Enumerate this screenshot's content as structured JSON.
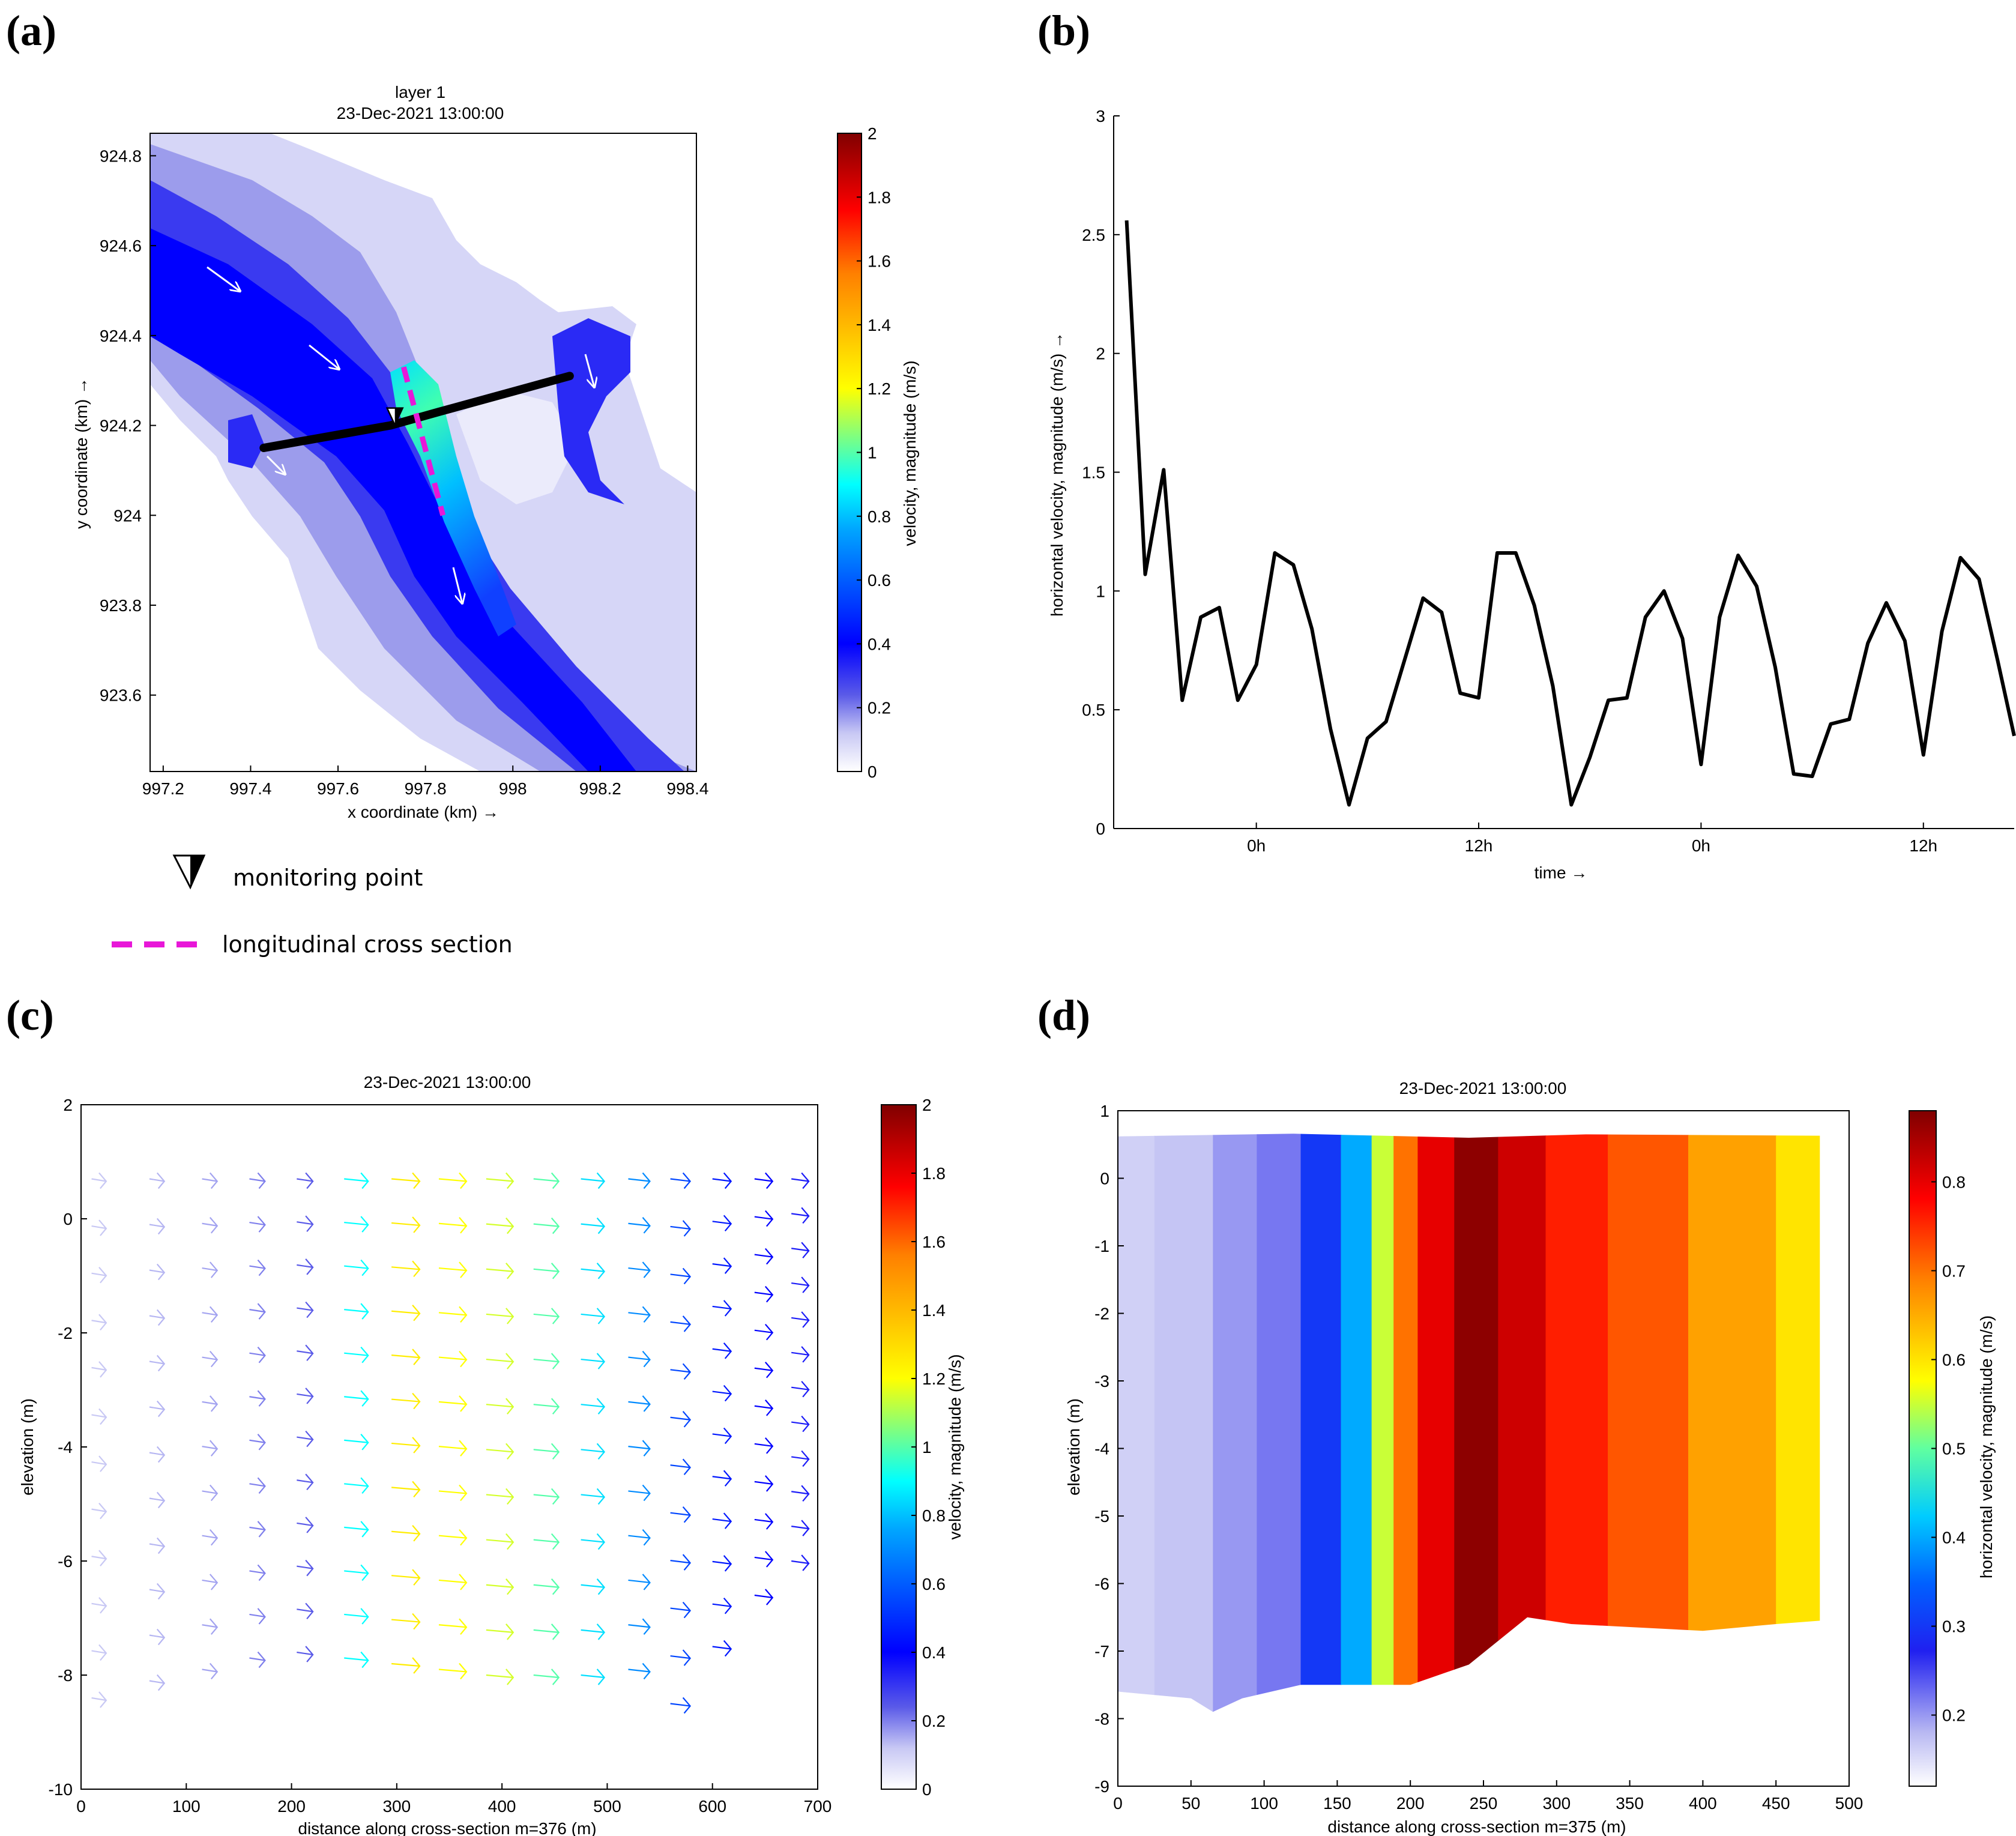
{
  "panels": [
    {
      "id": "a",
      "label": "(a)"
    },
    {
      "id": "b",
      "label": "(b)"
    },
    {
      "id": "c",
      "label": "(c)"
    },
    {
      "id": "d",
      "label": "(d)"
    }
  ],
  "legend": {
    "monitoring_point": "monitoring point",
    "longitudinal_cross_section": "longitudinal cross section",
    "monitoring_color": "#000000",
    "section_color": "#e817d8"
  },
  "chart_data": [
    {
      "panel": "a",
      "type": "heatmap",
      "title": "layer 1",
      "subtitle": "23-Dec-2021 13:00:00",
      "xlabel": "x coordinate (km) →",
      "ylabel": "y coordinate (km) →",
      "xlim": [
        997.17,
        998.42
      ],
      "ylim": [
        923.43,
        924.85
      ],
      "xticks": [
        997.2,
        997.4,
        997.6,
        997.8,
        998,
        998.2,
        998.4
      ],
      "xticklabels": [
        "997.2",
        "997.4",
        "997.6",
        "997.8",
        "998",
        "998.2",
        "998.4"
      ],
      "yticks": [
        923.6,
        923.8,
        924,
        924.2,
        924.4,
        924.6,
        924.8
      ],
      "yticklabels": [
        "923.6",
        "923.8",
        "924",
        "924.2",
        "924.4",
        "924.6",
        "924.8"
      ],
      "colorbar": {
        "label": "velocity, magnitude (m/s)",
        "range": [
          0,
          2
        ],
        "ticks": [
          0,
          0.2,
          0.4,
          0.6,
          0.8,
          1,
          1.2,
          1.4,
          1.6,
          1.8,
          2
        ],
        "ticklabels": [
          "0",
          "0.2",
          "0.4",
          "0.6",
          "0.8",
          "1",
          "1.2",
          "1.4",
          "1.6",
          "1.8",
          "2"
        ]
      },
      "weir_line": [
        [
          997.43,
          924.15
        ],
        [
          997.72,
          924.2
        ],
        [
          997.83,
          924.23
        ],
        [
          998.13,
          924.31
        ]
      ],
      "section_line": [
        [
          997.75,
          924.33
        ],
        [
          997.84,
          924.0
        ]
      ],
      "monitoring_point": [
        997.73,
        924.22
      ]
    },
    {
      "panel": "b",
      "type": "line",
      "xlabel": "time →",
      "ylabel": "horizontal velocity, magnitude (m/s) →",
      "ylim": [
        0,
        3
      ],
      "yticks": [
        0,
        0.5,
        1,
        1.5,
        2,
        2.5,
        3
      ],
      "yticklabels": [
        "0",
        "0.5",
        "1",
        "1.5",
        "2",
        "2.5",
        "3"
      ],
      "xlim": [
        -7.7,
        40.9
      ],
      "xticks": [
        0,
        12,
        24,
        36
      ],
      "xticklabels": [
        "0h",
        "12h",
        "0h",
        "12h"
      ],
      "series": [
        {
          "name": "horizontal velocity",
          "x": [
            -7,
            -6,
            -5,
            -4,
            -3,
            -2,
            -1,
            0,
            1,
            2,
            3,
            4,
            5,
            6,
            7,
            8,
            9,
            10,
            11,
            12,
            13,
            14,
            15,
            16,
            17,
            18,
            19,
            20,
            21,
            22,
            23,
            24,
            25,
            26,
            27,
            28,
            29,
            30,
            31,
            32,
            33,
            34,
            35,
            36,
            37,
            38,
            39,
            40,
            40.9
          ],
          "values": [
            2.56,
            1.07,
            1.51,
            0.54,
            0.89,
            0.93,
            0.54,
            0.69,
            1.16,
            1.11,
            0.84,
            0.42,
            0.1,
            0.38,
            0.45,
            0.71,
            0.97,
            0.91,
            0.57,
            0.55,
            1.16,
            1.16,
            0.94,
            0.6,
            0.1,
            0.3,
            0.54,
            0.55,
            0.89,
            1.0,
            0.8,
            0.27,
            0.89,
            1.15,
            1.02,
            0.68,
            0.23,
            0.22,
            0.44,
            0.46,
            0.78,
            0.95,
            0.79,
            0.31,
            0.83,
            1.14,
            1.05,
            0.71,
            0.39
          ]
        }
      ]
    },
    {
      "panel": "c",
      "type": "scatter",
      "title": "23-Dec-2021 13:00:00",
      "xlabel": "distance along cross-section m=376 (m)",
      "ylabel": "elevation (m)",
      "xlim": [
        0,
        700
      ],
      "ylim": [
        -10,
        2
      ],
      "xticks": [
        0,
        100,
        200,
        300,
        400,
        500,
        600,
        700
      ],
      "xticklabels": [
        "0",
        "100",
        "200",
        "300",
        "400",
        "500",
        "600",
        "700"
      ],
      "yticks": [
        -10,
        -8,
        -6,
        -4,
        -2,
        0,
        2
      ],
      "yticklabels": [
        "-10",
        "-8",
        "-6",
        "-4",
        "-2",
        "0",
        "2"
      ],
      "colorbar": {
        "label": "velocity, magnitude (m/s)",
        "range": [
          0,
          2
        ],
        "ticks": [
          0,
          0.2,
          0.4,
          0.6,
          0.8,
          1,
          1.2,
          1.4,
          1.6,
          1.8,
          2
        ],
        "ticklabels": [
          "0",
          "0.2",
          "0.4",
          "0.6",
          "0.8",
          "1",
          "1.2",
          "1.4",
          "1.6",
          "1.8",
          "2"
        ]
      },
      "columns": [
        {
          "x": 10,
          "bottom": -8.4,
          "speed": 0.12
        },
        {
          "x": 65,
          "bottom": -8.1,
          "speed": 0.14
        },
        {
          "x": 115,
          "bottom": -7.9,
          "speed": 0.16
        },
        {
          "x": 160,
          "bottom": -7.7,
          "speed": 0.2
        },
        {
          "x": 205,
          "bottom": -7.6,
          "speed": 0.24
        },
        {
          "x": 250,
          "bottom": -7.7,
          "speed": 0.9
        },
        {
          "x": 295,
          "bottom": -7.8,
          "speed": 1.25
        },
        {
          "x": 340,
          "bottom": -7.9,
          "speed": 1.2
        },
        {
          "x": 385,
          "bottom": -8.0,
          "speed": 1.15
        },
        {
          "x": 430,
          "bottom": -8.0,
          "speed": 1.0
        },
        {
          "x": 475,
          "bottom": -8.0,
          "speed": 0.85
        },
        {
          "x": 520,
          "bottom": -7.9,
          "speed": 0.7
        },
        {
          "x": 560,
          "bottom": -8.5,
          "speed": 0.55
        },
        {
          "x": 600,
          "bottom": -7.5,
          "speed": 0.45
        },
        {
          "x": 640,
          "bottom": -6.6,
          "speed": 0.4
        },
        {
          "x": 675,
          "bottom": -6.0,
          "speed": 0.35
        }
      ]
    },
    {
      "panel": "d",
      "type": "heatmap",
      "title": "23-Dec-2021 13:00:00",
      "xlabel": "distance along cross-section m=375 (m)",
      "ylabel": "elevation (m)",
      "xlim": [
        0,
        500
      ],
      "ylim": [
        -9,
        1
      ],
      "xticks": [
        0,
        50,
        100,
        150,
        200,
        250,
        300,
        350,
        400,
        450,
        500
      ],
      "xticklabels": [
        "0",
        "50",
        "100",
        "150",
        "200",
        "250",
        "300",
        "350",
        "400",
        "450",
        "500"
      ],
      "yticks": [
        -9,
        -8,
        -7,
        -6,
        -5,
        -4,
        -3,
        -2,
        -1,
        0,
        1
      ],
      "yticklabels": [
        "-9",
        "-8",
        "-7",
        "-6",
        "-5",
        "-4",
        "-3",
        "-2",
        "-1",
        "0",
        "1"
      ],
      "colorbar": {
        "label": "horizontal velocity, magnitude (m/s)",
        "range": [
          0.12,
          0.88
        ],
        "ticks": [
          0.2,
          0.3,
          0.4,
          0.5,
          0.6,
          0.7,
          0.8
        ],
        "ticklabels": [
          "0.2",
          "0.3",
          "0.4",
          "0.5",
          "0.6",
          "0.7",
          "0.8"
        ]
      },
      "bed_profile": [
        [
          0,
          -7.6
        ],
        [
          50,
          -7.7
        ],
        [
          65,
          -7.9
        ],
        [
          85,
          -7.7
        ],
        [
          125,
          -7.5
        ],
        [
          200,
          -7.5
        ],
        [
          240,
          -7.2
        ],
        [
          280,
          -6.5
        ],
        [
          310,
          -6.6
        ],
        [
          400,
          -6.7
        ],
        [
          450,
          -6.6
        ],
        [
          480,
          -6.55
        ]
      ],
      "surface": [
        [
          0,
          0.62
        ],
        [
          120,
          0.66
        ],
        [
          240,
          0.6
        ],
        [
          320,
          0.65
        ],
        [
          480,
          0.63
        ]
      ],
      "profile_speeds": [
        {
          "x": 0,
          "v": 0.16
        },
        {
          "x": 50,
          "v": 0.17
        },
        {
          "x": 80,
          "v": 0.2
        },
        {
          "x": 110,
          "v": 0.22
        },
        {
          "x": 140,
          "v": 0.3
        },
        {
          "x": 165,
          "v": 0.4
        },
        {
          "x": 182,
          "v": 0.55
        },
        {
          "x": 195,
          "v": 0.7
        },
        {
          "x": 215,
          "v": 0.8
        },
        {
          "x": 245,
          "v": 0.87
        },
        {
          "x": 275,
          "v": 0.82
        },
        {
          "x": 310,
          "v": 0.76
        },
        {
          "x": 360,
          "v": 0.72
        },
        {
          "x": 420,
          "v": 0.66
        },
        {
          "x": 480,
          "v": 0.6
        }
      ]
    }
  ]
}
